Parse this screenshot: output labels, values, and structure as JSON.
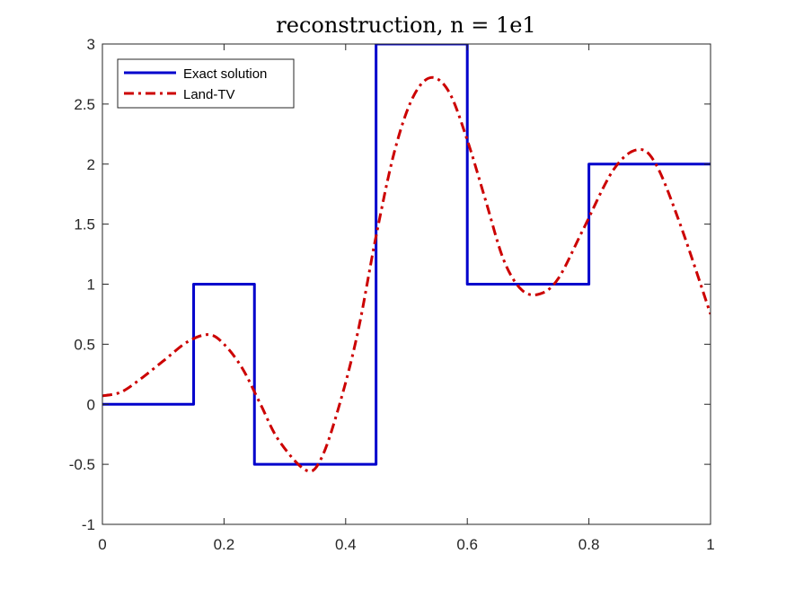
{
  "chart_data": {
    "type": "line",
    "title": "reconstruction, n = 1e1",
    "xlabel": "",
    "ylabel": "",
    "xlim": [
      0,
      1
    ],
    "ylim": [
      -1,
      3
    ],
    "xticks": [
      0,
      0.2,
      0.4,
      0.6,
      0.8,
      1
    ],
    "xtick_labels": [
      "0",
      "0.2",
      "0.4",
      "0.6",
      "0.8",
      "1"
    ],
    "yticks": [
      -1,
      -0.5,
      0,
      0.5,
      1,
      1.5,
      2,
      2.5,
      3
    ],
    "ytick_labels": [
      "-1",
      "-0.5",
      "0",
      "0.5",
      "1",
      "1.5",
      "2",
      "2.5",
      "3"
    ],
    "grid": false,
    "legend": {
      "placement": "top-left"
    },
    "series": [
      {
        "name": "Exact solution",
        "color": "#0000cc",
        "style": "solid",
        "x": [
          0,
          0.15,
          0.15,
          0.25,
          0.25,
          0.45,
          0.45,
          0.6,
          0.6,
          0.8,
          0.8,
          1
        ],
        "y": [
          0,
          0,
          1,
          1,
          -0.5,
          -0.5,
          3,
          3,
          1,
          1,
          2,
          2
        ]
      },
      {
        "name": "Land-TV",
        "color": "#cc0000",
        "style": "dash-dot",
        "x": [
          0,
          0.03,
          0.06,
          0.1,
          0.14,
          0.175,
          0.2,
          0.23,
          0.26,
          0.29,
          0.335,
          0.36,
          0.39,
          0.42,
          0.45,
          0.48,
          0.51,
          0.54,
          0.57,
          0.6,
          0.63,
          0.66,
          0.69,
          0.72,
          0.75,
          0.79,
          0.84,
          0.88,
          0.91,
          0.95,
          1
        ],
        "y": [
          0.07,
          0.1,
          0.2,
          0.36,
          0.52,
          0.58,
          0.5,
          0.3,
          0.0,
          -0.3,
          -0.55,
          -0.45,
          0.0,
          0.6,
          1.4,
          2.1,
          2.55,
          2.72,
          2.6,
          2.2,
          1.7,
          1.2,
          0.95,
          0.92,
          1.05,
          1.45,
          1.95,
          2.12,
          2.0,
          1.5,
          0.75
        ]
      }
    ]
  }
}
